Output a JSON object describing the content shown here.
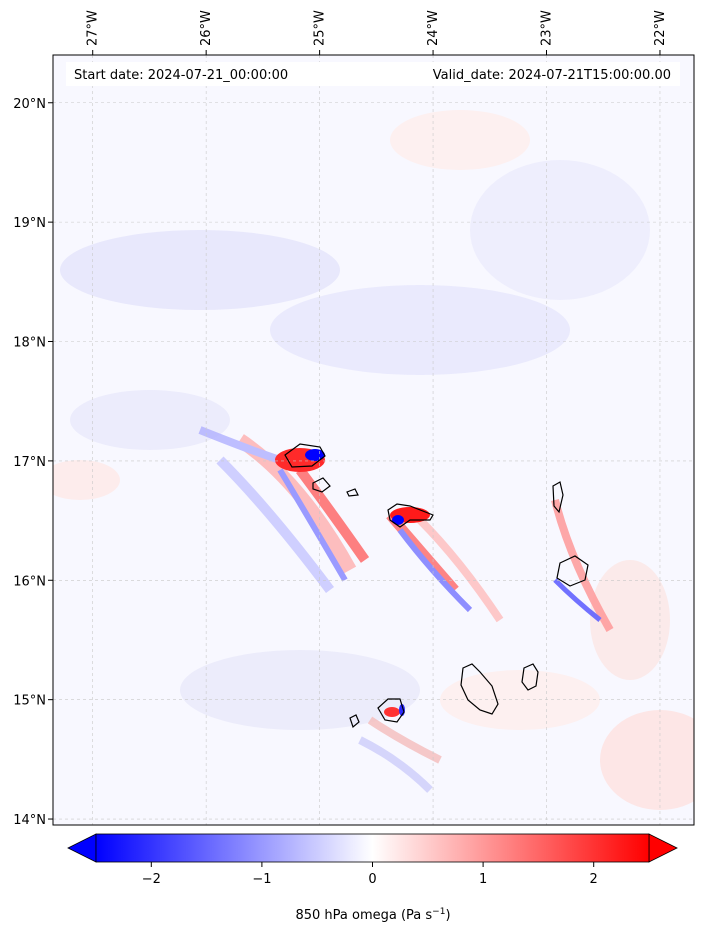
{
  "map": {
    "start_date_label": "Start date: 2024-07-21_00:00:00",
    "valid_date_label": "Valid_date: 2024-07-21T15:00:00.00",
    "lon_ticks": [
      {
        "value": -27,
        "label": "27°W"
      },
      {
        "value": -26,
        "label": "26°W"
      },
      {
        "value": -25,
        "label": "25°W"
      },
      {
        "value": -24,
        "label": "24°W"
      },
      {
        "value": -23,
        "label": "23°W"
      },
      {
        "value": -22,
        "label": "22°W"
      }
    ],
    "lat_ticks": [
      {
        "value": 20,
        "label": "20°N"
      },
      {
        "value": 19,
        "label": "19°N"
      },
      {
        "value": 18,
        "label": "18°N"
      },
      {
        "value": 17,
        "label": "17°N"
      },
      {
        "value": 16,
        "label": "16°N"
      },
      {
        "value": 15,
        "label": "15°N"
      },
      {
        "value": 14,
        "label": "14°N"
      }
    ],
    "extent": {
      "lon_min": -27.35,
      "lon_max": -21.7,
      "lat_min": 13.95,
      "lat_max": 20.4
    },
    "colorbar": {
      "label_prefix": "850 hPa omega (Pa s",
      "label_exp": "−1",
      "label_suffix": ")",
      "ticks": [
        {
          "value": -2,
          "label": "−2"
        },
        {
          "value": -1,
          "label": "−1"
        },
        {
          "value": 0,
          "label": "0"
        },
        {
          "value": 1,
          "label": "1"
        },
        {
          "value": 2,
          "label": "2"
        }
      ],
      "range": [
        -2.5,
        2.5
      ],
      "colormap": "bwr",
      "extend": "both"
    },
    "colors": {
      "negative": "#0000ff",
      "zero": "#ffffff",
      "positive": "#ff0000",
      "coastline": "#000000"
    },
    "grid": true
  }
}
